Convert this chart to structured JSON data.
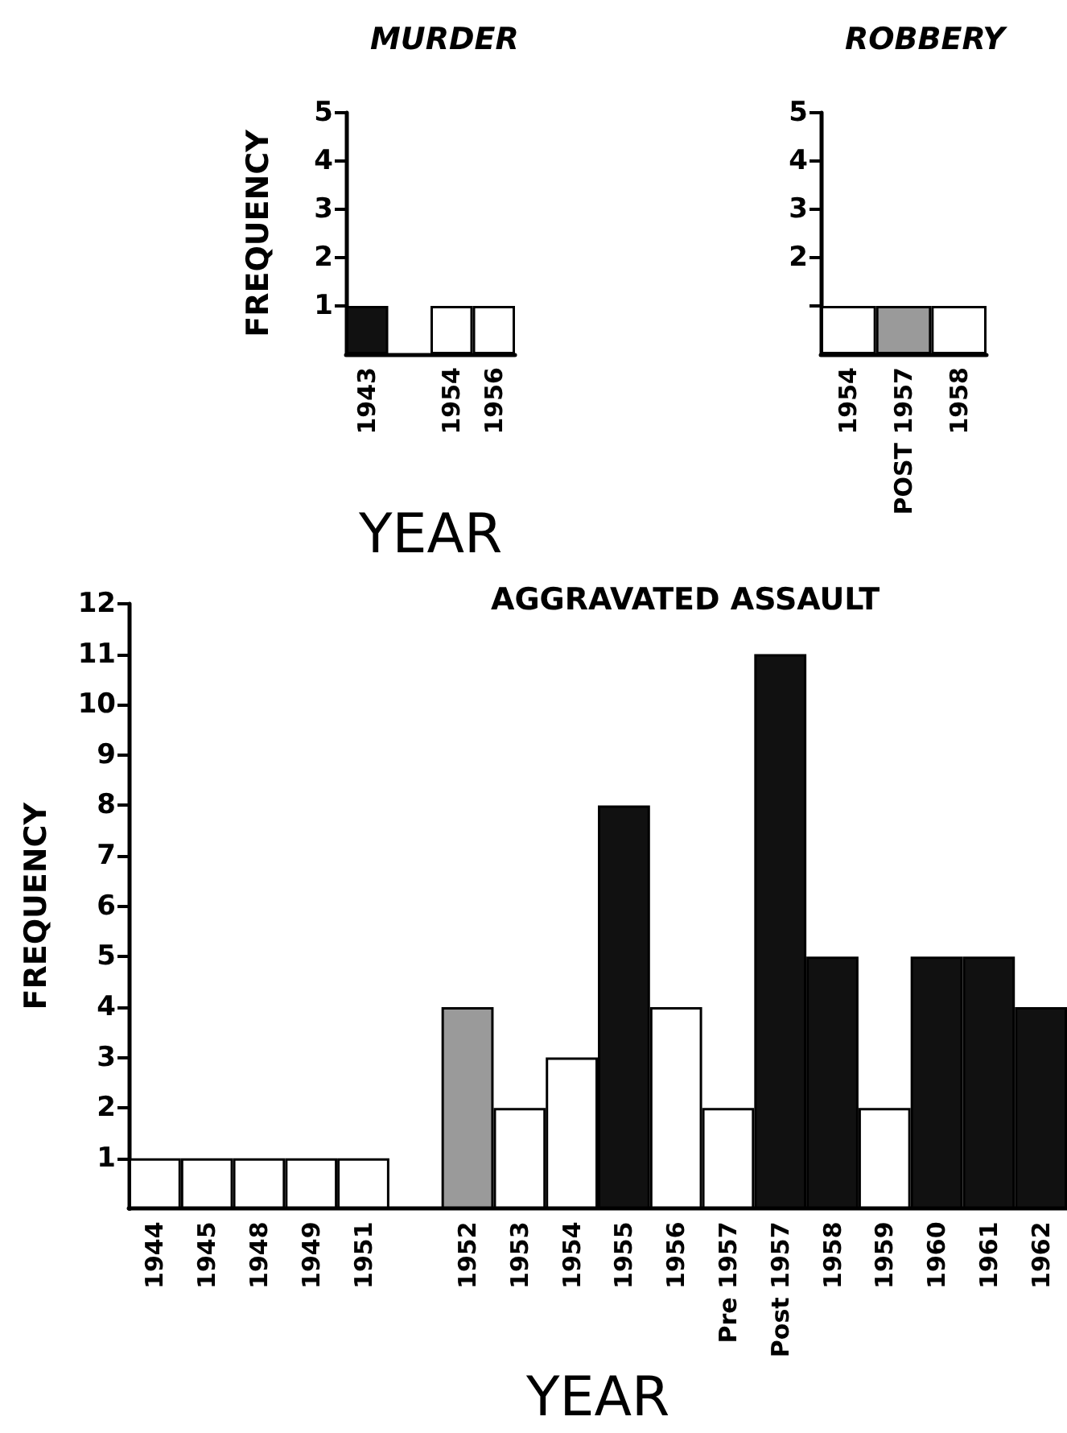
{
  "chart_data": [
    {
      "type": "bar",
      "title": "MURDER",
      "ylabel": "FREQUENCY",
      "xlabel": "YEAR",
      "categories": [
        "1943",
        null,
        "1954",
        "1956"
      ],
      "values": [
        1,
        null,
        1,
        1
      ],
      "colors": [
        "#111111",
        "#ffffff",
        "#ffffff",
        "#ffffff"
      ],
      "ylim": [
        0,
        5
      ],
      "yticks": [
        1,
        2,
        3,
        4,
        5
      ]
    },
    {
      "type": "bar",
      "title": "ROBBERY",
      "categories": [
        "1954",
        "POST 1957",
        "1958"
      ],
      "values": [
        1,
        1,
        1
      ],
      "colors": [
        "#ffffff",
        "#9a9a9a",
        "#ffffff"
      ],
      "ylim": [
        0,
        5
      ],
      "yticks": [
        {
          "value": 1,
          "label": null
        },
        2,
        3,
        4,
        5
      ]
    },
    {
      "type": "bar",
      "title": "AGGRAVATED ASSAULT",
      "ylabel": "FREQUENCY",
      "xlabel": "YEAR",
      "categories": [
        "1944",
        "1945",
        "1948",
        "1949",
        "1951",
        null,
        "1952",
        "1953",
        "1954",
        "1955",
        "1956",
        "Pre 1957",
        "Post 1957",
        "1958",
        "1959",
        "1960",
        "1961",
        "1962"
      ],
      "values": [
        1,
        1,
        1,
        1,
        1,
        null,
        4,
        2,
        3,
        8,
        4,
        2,
        11,
        5,
        2,
        5,
        5,
        4
      ],
      "colors": [
        "#ffffff",
        "#ffffff",
        "#ffffff",
        "#ffffff",
        "#ffffff",
        "#ffffff",
        "#9a9a9a",
        "#ffffff",
        "#ffffff",
        "#111111",
        "#ffffff",
        "#ffffff",
        "#111111",
        "#111111",
        "#ffffff",
        "#111111",
        "#111111",
        "#111111"
      ],
      "ylim": [
        0,
        12
      ],
      "yticks": [
        1,
        2,
        3,
        4,
        5,
        6,
        7,
        8,
        9,
        10,
        11,
        12
      ]
    }
  ]
}
